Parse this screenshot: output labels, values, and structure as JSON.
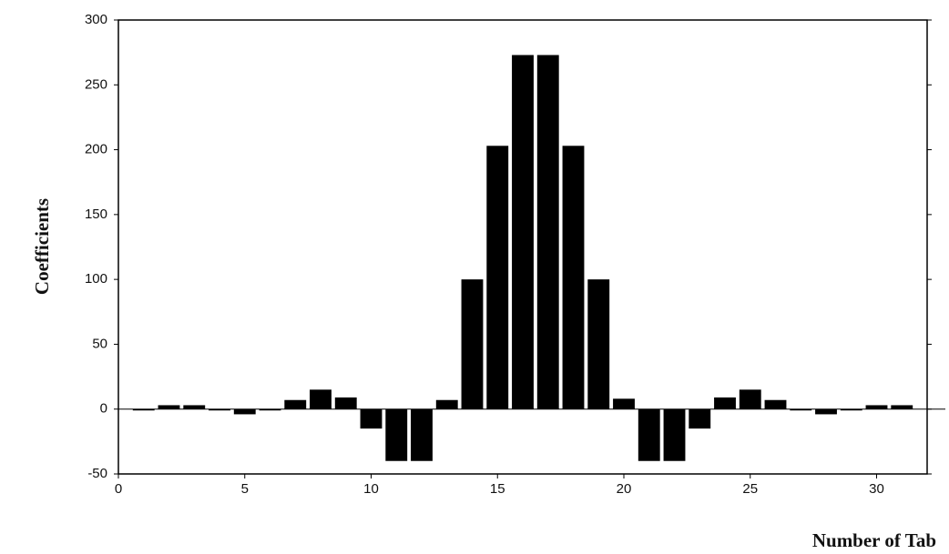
{
  "chart_data": {
    "type": "bar",
    "x_label": "Number of Tab",
    "y_label": "Coefficients",
    "x": [
      1,
      2,
      3,
      4,
      5,
      6,
      7,
      8,
      9,
      10,
      11,
      12,
      13,
      14,
      15,
      16,
      17,
      18,
      19,
      20,
      21,
      22,
      23,
      24,
      25,
      26,
      27,
      28,
      29,
      30,
      31
    ],
    "values": [
      -1,
      3,
      3,
      -1,
      -4,
      -1,
      7,
      15,
      9,
      -15,
      -40,
      -40,
      7,
      100,
      203,
      273,
      273,
      203,
      100,
      8,
      -40,
      -40,
      -15,
      9,
      15,
      7,
      -1,
      -4,
      -1,
      3,
      3
    ],
    "color": "#000000",
    "xlim": [
      0,
      32
    ],
    "xticks": [
      0,
      5,
      10,
      15,
      20,
      25,
      30
    ],
    "ylim": [
      -50,
      300
    ],
    "yticks": [
      -50,
      0,
      50,
      100,
      150,
      200,
      250,
      300
    ]
  }
}
